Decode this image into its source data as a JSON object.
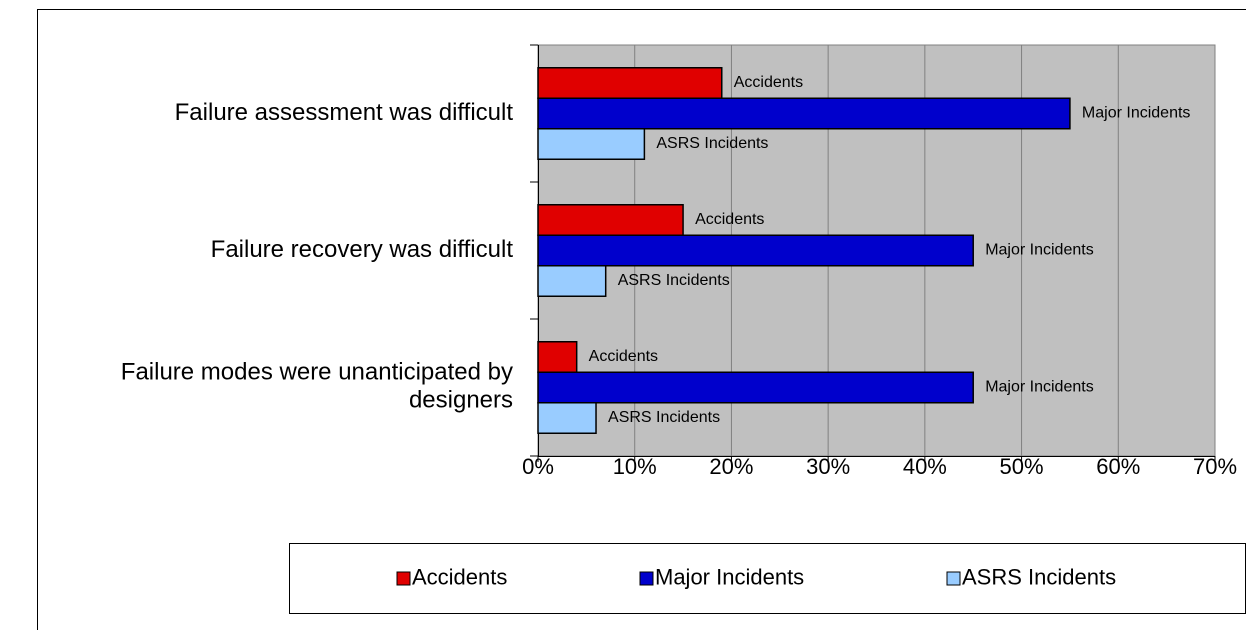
{
  "chart_data": {
    "type": "barh",
    "categories": [
      "Failure assessment was difficult",
      "Failure recovery was difficult",
      "Failure modes were unanticipated by designers"
    ],
    "series": [
      {
        "name": "Accidents",
        "color": "#e00000",
        "values": [
          19,
          15,
          4
        ]
      },
      {
        "name": "Major Incidents",
        "color": "#0000cc",
        "values": [
          55,
          45,
          45
        ]
      },
      {
        "name": "ASRS Incidents",
        "color": "#99ccff",
        "values": [
          11,
          7,
          6
        ]
      }
    ],
    "xlim": [
      0,
      70
    ],
    "xticks": [
      {
        "value": 0,
        "label": "0%"
      },
      {
        "value": 10,
        "label": "10%"
      },
      {
        "value": 20,
        "label": "20%"
      },
      {
        "value": 30,
        "label": "30%"
      },
      {
        "value": 40,
        "label": "40%"
      },
      {
        "value": 50,
        "label": "50%"
      },
      {
        "value": 60,
        "label": "60%"
      },
      {
        "value": 70,
        "label": "70%"
      }
    ],
    "grid": true,
    "legend": "bottom",
    "plot_background": "#c0c0c0"
  }
}
